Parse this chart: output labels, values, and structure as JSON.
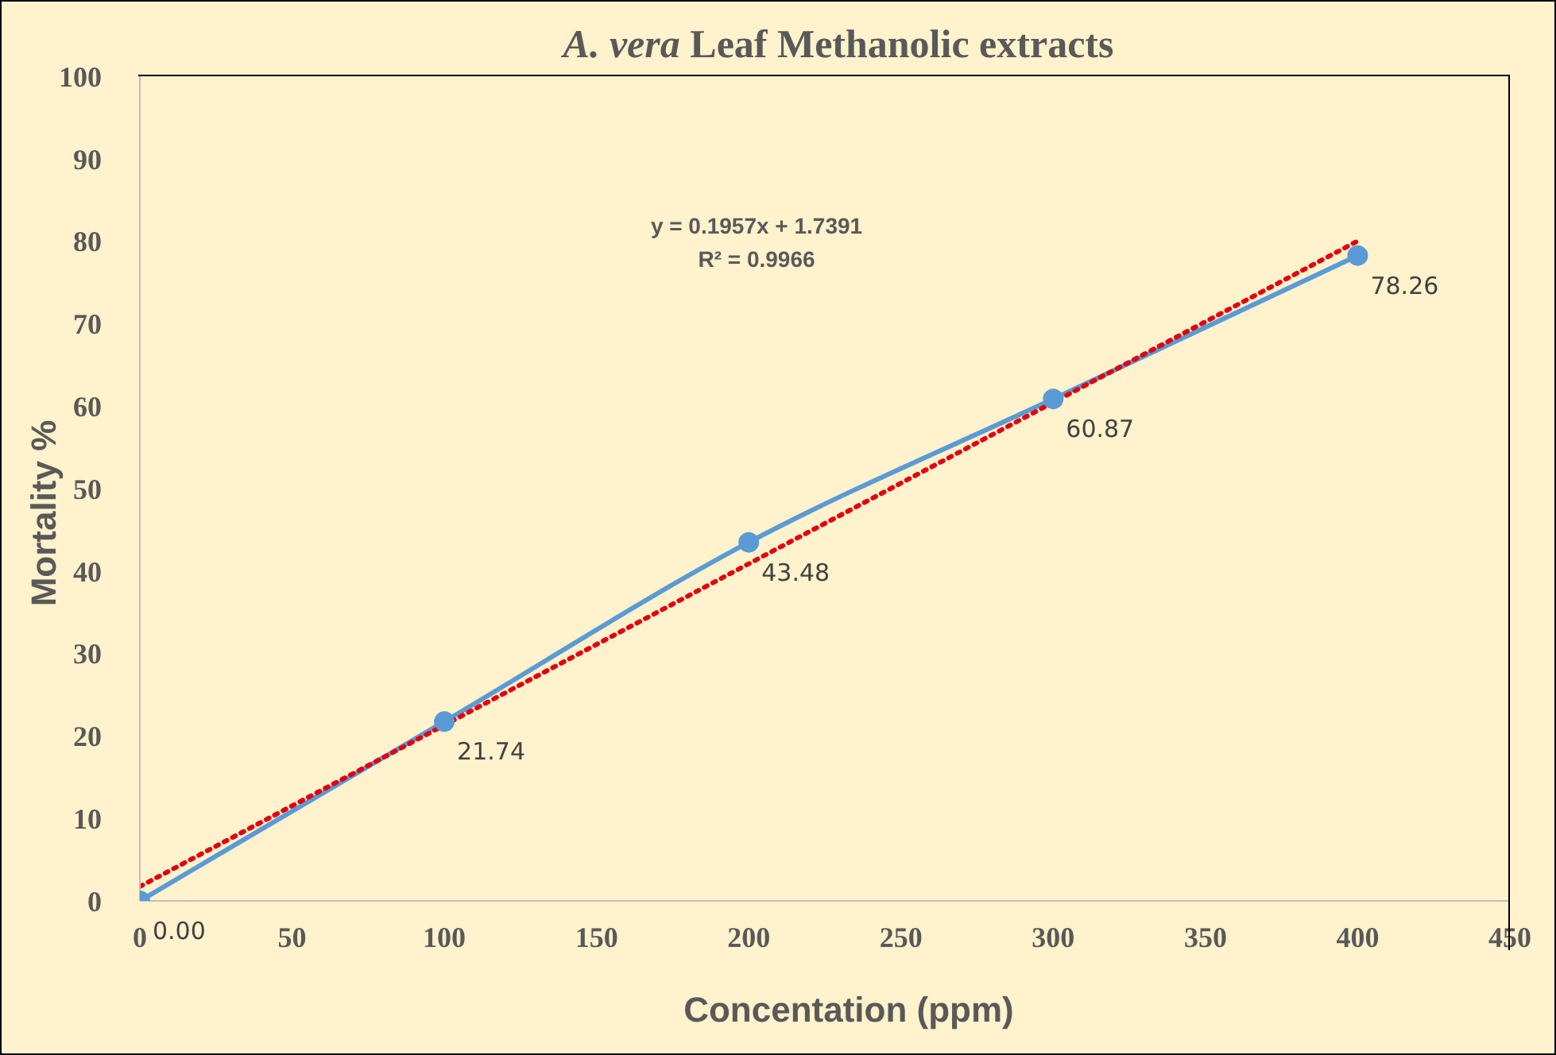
{
  "chart_data": {
    "type": "line",
    "title": "A. vera Leaf Methanolic extracts",
    "xlabel": "Concentation (ppm)",
    "ylabel": "Mortality %",
    "annotations": [
      "y = 0.1957x + 1.7391",
      "R² = 0.9966"
    ],
    "xlim": [
      0,
      450
    ],
    "xticks": [
      0,
      50,
      100,
      150,
      200,
      250,
      300,
      350,
      400,
      450
    ],
    "ylim": [
      0,
      100
    ],
    "yticks": [
      0,
      10,
      20,
      30,
      40,
      50,
      60,
      70,
      80,
      90,
      100
    ],
    "grid": false,
    "series": [
      {
        "color": "#5b9bd5",
        "x": [
          0,
          100,
          200,
          300,
          400
        ],
        "values": [
          0,
          21.74,
          43.48,
          60.87,
          78.26
        ],
        "value_labels": [
          "0.00",
          "21.74",
          "43.48",
          "60.87",
          "78.26"
        ],
        "marker": "circle",
        "line_style": "solid"
      },
      {
        "type": "line",
        "color": "#e3000f",
        "x": [
          0,
          400
        ],
        "values": [
          1.74,
          80.02
        ],
        "marker": "none",
        "line_style": "dotted"
      }
    ]
  }
}
